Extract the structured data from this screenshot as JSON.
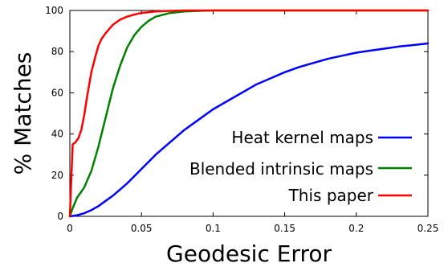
{
  "chart_data": {
    "type": "line",
    "title": "",
    "xlabel": "Geodesic Error",
    "ylabel": "% Matches",
    "xlim": [
      0,
      0.25
    ],
    "ylim": [
      0,
      100
    ],
    "x_ticks": [
      0,
      0.05,
      0.1,
      0.15,
      0.2,
      0.25
    ],
    "x_tick_labels": [
      "0",
      "0.05",
      "0.1",
      "0.15",
      "0.2",
      "0.25"
    ],
    "y_ticks": [
      0,
      20,
      40,
      60,
      80,
      100
    ],
    "y_tick_labels": [
      "0",
      "20",
      "40",
      "60",
      "80",
      "100"
    ],
    "grid": false,
    "legend_position": "bottom-right",
    "series": [
      {
        "name": "Heat kernel maps",
        "color": "#0000ff",
        "x": [
          0,
          0.005,
          0.01,
          0.015,
          0.02,
          0.03,
          0.04,
          0.05,
          0.06,
          0.07,
          0.08,
          0.09,
          0.1,
          0.11,
          0.12,
          0.13,
          0.14,
          0.15,
          0.16,
          0.17,
          0.18,
          0.19,
          0.2,
          0.21,
          0.22,
          0.23,
          0.24,
          0.25
        ],
        "y": [
          0,
          0.5,
          1.5,
          3,
          5,
          10,
          16,
          23,
          30,
          36,
          42,
          47,
          52,
          56,
          60,
          64,
          67,
          70,
          72.5,
          74.5,
          76.5,
          78,
          79.5,
          80.5,
          81.5,
          82.5,
          83.2,
          84
        ]
      },
      {
        "name": "Blended intrinsic maps",
        "color": "#008000",
        "x": [
          0,
          0.002,
          0.005,
          0.01,
          0.015,
          0.02,
          0.025,
          0.03,
          0.035,
          0.04,
          0.045,
          0.05,
          0.055,
          0.06,
          0.07,
          0.08,
          0.09,
          0.1,
          0.15,
          0.2,
          0.25
        ],
        "y": [
          0,
          4,
          9,
          14,
          22,
          34,
          48,
          62,
          73,
          82,
          88,
          92,
          95,
          97,
          98.8,
          99.5,
          99.8,
          100,
          100,
          100,
          100
        ]
      },
      {
        "name": "This paper",
        "color": "#ff0000",
        "x": [
          0,
          0.001,
          0.002,
          0.004,
          0.006,
          0.008,
          0.01,
          0.012,
          0.015,
          0.018,
          0.02,
          0.022,
          0.025,
          0.03,
          0.035,
          0.04,
          0.045,
          0.05,
          0.06,
          0.07,
          0.08,
          0.1,
          0.15,
          0.2,
          0.25
        ],
        "y": [
          0,
          18,
          35,
          36,
          38,
          42,
          49,
          58,
          70,
          78,
          83,
          86,
          89,
          93,
          95.5,
          97,
          98,
          98.8,
          99.5,
          99.8,
          100,
          100,
          100,
          100,
          100
        ]
      }
    ]
  }
}
